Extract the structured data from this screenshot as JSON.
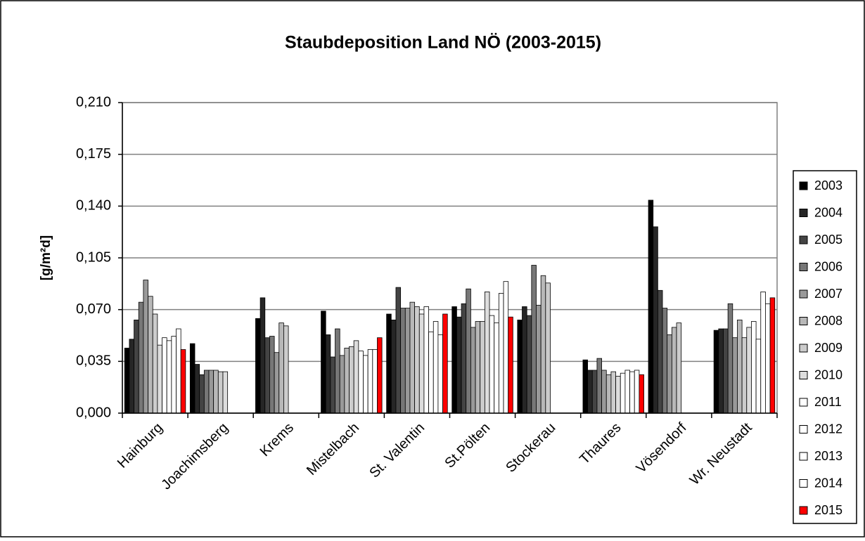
{
  "chart_data": {
    "type": "bar",
    "title": "Staubdeposition Land NÖ (2003-2015)",
    "y_label": "[g/m²d]",
    "categories": [
      "Hainburg",
      "Joachimsberg",
      "Krems",
      "Mistelbach",
      "St. Valentin",
      "St.Pölten",
      "Stockerau",
      "Thaures",
      "Vösendorf",
      "Wr. Neustadt"
    ],
    "ylim": [
      0,
      0.21
    ],
    "yticks": [
      {
        "value": 0,
        "label": "0,000"
      },
      {
        "value": 0.035,
        "label": "0,035"
      },
      {
        "value": 0.07,
        "label": "0,070"
      },
      {
        "value": 0.105,
        "label": "0,105"
      },
      {
        "value": 0.14,
        "label": "0,140"
      },
      {
        "value": 0.175,
        "label": "0,175"
      },
      {
        "value": 0.21,
        "label": "0,210"
      }
    ],
    "grid": true,
    "legend": "right",
    "series": [
      {
        "name": "2003",
        "color": "#000000",
        "values": [
          0.044,
          0.047,
          0.064,
          0.069,
          0.067,
          0.072,
          0.063,
          0.036,
          0.144,
          0.056
        ]
      },
      {
        "name": "2004",
        "color": "#262626",
        "values": [
          0.05,
          0.033,
          0.078,
          0.053,
          0.063,
          0.065,
          0.072,
          0.029,
          0.126,
          0.057
        ]
      },
      {
        "name": "2005",
        "color": "#444444",
        "values": [
          0.063,
          0.026,
          0.051,
          0.038,
          0.085,
          0.074,
          0.066,
          0.029,
          0.083,
          0.057
        ]
      },
      {
        "name": "2006",
        "color": "#777777",
        "values": [
          0.075,
          0.029,
          0.052,
          0.057,
          0.071,
          0.084,
          0.1,
          0.037,
          0.071,
          0.074
        ]
      },
      {
        "name": "2007",
        "color": "#999999",
        "values": [
          0.09,
          0.029,
          0.041,
          0.039,
          0.071,
          0.058,
          0.073,
          0.029,
          0.053,
          0.051
        ]
      },
      {
        "name": "2008",
        "color": "#b8b8b8",
        "values": [
          0.079,
          0.029,
          0.061,
          0.044,
          0.075,
          0.062,
          0.093,
          0.026,
          0.058,
          0.063
        ]
      },
      {
        "name": "2009",
        "color": "#cccccc",
        "values": [
          0.067,
          0.028,
          0.059,
          0.045,
          0.072,
          0.062,
          0.088,
          0.028,
          0.061,
          0.051
        ]
      },
      {
        "name": "2010",
        "color": "#dddddd",
        "values": [
          0.046,
          0.028,
          null,
          0.049,
          0.067,
          0.082,
          null,
          0.025,
          null,
          0.058
        ]
      },
      {
        "name": "2011",
        "color": "#ffffff",
        "values": [
          0.051,
          null,
          null,
          0.042,
          0.072,
          0.066,
          null,
          0.027,
          null,
          0.062
        ]
      },
      {
        "name": "2012",
        "color": "#ffffff",
        "values": [
          0.049,
          null,
          null,
          0.039,
          0.055,
          0.061,
          null,
          0.029,
          null,
          0.05
        ]
      },
      {
        "name": "2013",
        "color": "#ffffff",
        "values": [
          0.052,
          null,
          null,
          0.043,
          0.062,
          0.081,
          null,
          0.028,
          null,
          0.082
        ]
      },
      {
        "name": "2014",
        "color": "#ffffff",
        "values": [
          0.057,
          null,
          null,
          0.043,
          0.053,
          0.089,
          null,
          0.029,
          null,
          0.074
        ]
      },
      {
        "name": "2015",
        "color": "#ff0000",
        "values": [
          0.043,
          null,
          null,
          0.051,
          0.067,
          0.065,
          null,
          0.026,
          null,
          0.078
        ]
      }
    ]
  }
}
